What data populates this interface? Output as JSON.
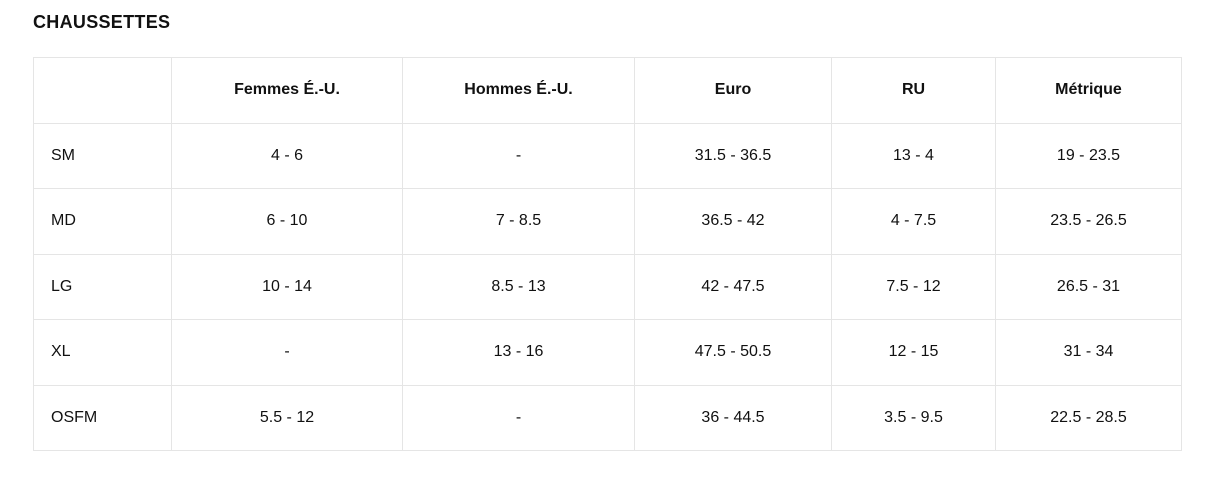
{
  "page": {
    "title": "CHAUSSETTES"
  },
  "colors": {
    "text": "#111111",
    "border": "#e5e5e5",
    "background": "#ffffff"
  },
  "table": {
    "headers": [
      "",
      "Femmes É.-U.",
      "Hommes É.-U.",
      "Euro",
      "RU",
      "Métrique"
    ],
    "rows": [
      {
        "label": "SM",
        "values": [
          "4 - 6",
          "-",
          "31.5 - 36.5",
          "13 - 4",
          "19 - 23.5"
        ]
      },
      {
        "label": "MD",
        "values": [
          "6 - 10",
          "7 - 8.5",
          "36.5 - 42",
          "4 - 7.5",
          "23.5 - 26.5"
        ]
      },
      {
        "label": "LG",
        "values": [
          "10 - 14",
          "8.5 - 13",
          "42 - 47.5",
          "7.5 - 12",
          "26.5 - 31"
        ]
      },
      {
        "label": "XL",
        "values": [
          "-",
          "13 - 16",
          "47.5 - 50.5",
          "12 - 15",
          "31 - 34"
        ]
      },
      {
        "label": "OSFM",
        "values": [
          "5.5 - 12",
          "-",
          "36 - 44.5",
          "3.5 - 9.5",
          "22.5 - 28.5"
        ]
      }
    ]
  }
}
